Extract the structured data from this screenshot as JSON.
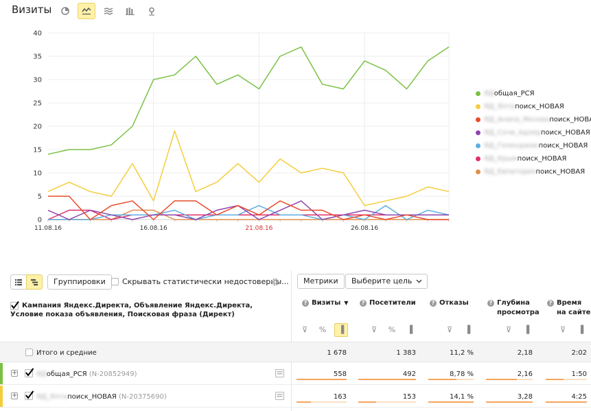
{
  "header": {
    "title": "Визиты"
  },
  "chart_toolbar": [
    {
      "icon": "pie-chart-icon",
      "active": false
    },
    {
      "icon": "line-chart-icon",
      "active": true
    },
    {
      "icon": "area-chart-icon",
      "active": false
    },
    {
      "icon": "bar-chart-icon",
      "active": false
    },
    {
      "icon": "map-pin-icon",
      "active": false
    }
  ],
  "colors": {
    "accent_yellow": "#fff1a8",
    "grid": "#ececec",
    "axis_text": "#333333",
    "highlight_date": "#d32f2f"
  },
  "chart_data": {
    "type": "line",
    "x": [
      "11.08.16",
      "12.08.16",
      "13.08.16",
      "14.08.16",
      "15.08.16",
      "16.08.16",
      "17.08.16",
      "18.08.16",
      "19.08.16",
      "20.08.16",
      "21.08.16",
      "22.08.16",
      "23.08.16",
      "24.08.16",
      "25.08.16",
      "26.08.16",
      "27.08.16",
      "28.08.16",
      "29.08.16",
      "30.08.16"
    ],
    "x_tick_labels": [
      {
        "label": "11.08.16",
        "index": 0,
        "highlight": false
      },
      {
        "label": "16.08.16",
        "index": 5,
        "highlight": false
      },
      {
        "label": "21.08.16",
        "index": 10,
        "highlight": true
      },
      {
        "label": "26.08.16",
        "index": 15,
        "highlight": false
      }
    ],
    "ylim": [
      0,
      40
    ],
    "y_ticks": [
      0,
      5,
      10,
      15,
      20,
      25,
      30,
      35,
      40
    ],
    "grid": true,
    "legend_position": "right",
    "series": [
      {
        "name_prefix": "ЯД",
        "name": "общая_РСЯ",
        "color": "#7ac143",
        "values": [
          14,
          15,
          15,
          16,
          20,
          30,
          31,
          35,
          29,
          31,
          28,
          35,
          37,
          29,
          28,
          34,
          32,
          28,
          34,
          37
        ]
      },
      {
        "name_prefix": "ЯД_Ялта",
        "name": "поиск_НОВАЯ",
        "color": "#f5cd3a",
        "values": [
          6,
          8,
          6,
          5,
          12,
          4,
          19,
          6,
          8,
          12,
          8,
          13,
          10,
          11,
          10,
          3,
          4,
          5,
          7,
          6
        ]
      },
      {
        "name_prefix": "ЯД_Анапа_Москва",
        "name": "поиск_НОВАЯ",
        "color": "#e84b2a",
        "values": [
          5,
          5,
          0,
          3,
          4,
          0,
          4,
          4,
          1,
          3,
          1,
          4,
          2,
          2,
          0,
          1,
          0,
          1,
          0,
          0
        ]
      },
      {
        "name_prefix": "ЯД_Сочи_Адлер",
        "name": "поиск_НОВАЯ",
        "color": "#8e44ad",
        "values": [
          2,
          0,
          2,
          1,
          0,
          1,
          1,
          0,
          2,
          3,
          0,
          2,
          4,
          0,
          1,
          2,
          1,
          1,
          1,
          1
        ]
      },
      {
        "name_prefix": "ЯД_Геленджик",
        "name": "поиск_НОВАЯ",
        "color": "#5dade2",
        "values": [
          0,
          0,
          0,
          1,
          1,
          1,
          2,
          0,
          1,
          1,
          3,
          1,
          1,
          0,
          1,
          0,
          3,
          0,
          2,
          1
        ]
      },
      {
        "name_prefix": "ЯД_Крым",
        "name": "поиск_НОВАЯ",
        "color": "#e0306a",
        "values": [
          0,
          2,
          2,
          0,
          1,
          1,
          1,
          1,
          1,
          1,
          1,
          1,
          1,
          1,
          1,
          1,
          1,
          1,
          1,
          1
        ]
      },
      {
        "name_prefix": "ЯД_Евпатория",
        "name": "поиск_НОВАЯ",
        "color": "#e08e4a",
        "values": [
          0,
          0,
          0,
          0,
          2,
          2,
          0,
          0,
          0,
          0,
          0,
          0,
          0,
          0,
          0,
          0,
          0,
          0,
          0,
          0
        ]
      }
    ]
  },
  "report_toolbar": {
    "groupings_label": "Группировки",
    "hide_label": "Скрывать статистически недостоверны...",
    "metrics_label": "Метрики",
    "goal_label": "Выберите цель"
  },
  "table": {
    "dimension_title": "Кампания Яндекс.Директа, Объявление Яндекс.Директа, Условие показа объявления, Поисковая фраза (Директ)",
    "columns": [
      {
        "name": "visits",
        "line1": "Визиты",
        "line2": "",
        "sorted": true
      },
      {
        "name": "visitors",
        "line1": "Посетители",
        "line2": ""
      },
      {
        "name": "bounces",
        "line1": "Отказы",
        "line2": ""
      },
      {
        "name": "depth",
        "line1": "Глубина",
        "line2": "просмотра"
      },
      {
        "name": "time",
        "line1": "Время",
        "line2": "на сайте"
      }
    ],
    "sort_indicator": "▼",
    "total": {
      "label": "Итого и средние",
      "values": [
        "1 678",
        "1 383",
        "11,2 %",
        "2,18",
        "2:02"
      ]
    },
    "rows": [
      {
        "name_prefix": "ЯД",
        "name": "общая_РСЯ",
        "id": "(N-20852949)",
        "color": "#7ac143",
        "values": [
          "558",
          "492",
          "8,78 %",
          "2,16",
          "1:50"
        ],
        "bars": [
          1.0,
          1.0,
          0.62,
          0.66,
          0.43
        ]
      },
      {
        "name_prefix": "ЯД_Ялта",
        "name": "поиск_НОВАЯ",
        "id": "(N-20375690)",
        "color": "#f5cd3a",
        "values": [
          "163",
          "153",
          "14,1 %",
          "3,28",
          "4:25"
        ],
        "bars": [
          0.29,
          0.31,
          1.0,
          1.0,
          1.0
        ]
      }
    ]
  }
}
